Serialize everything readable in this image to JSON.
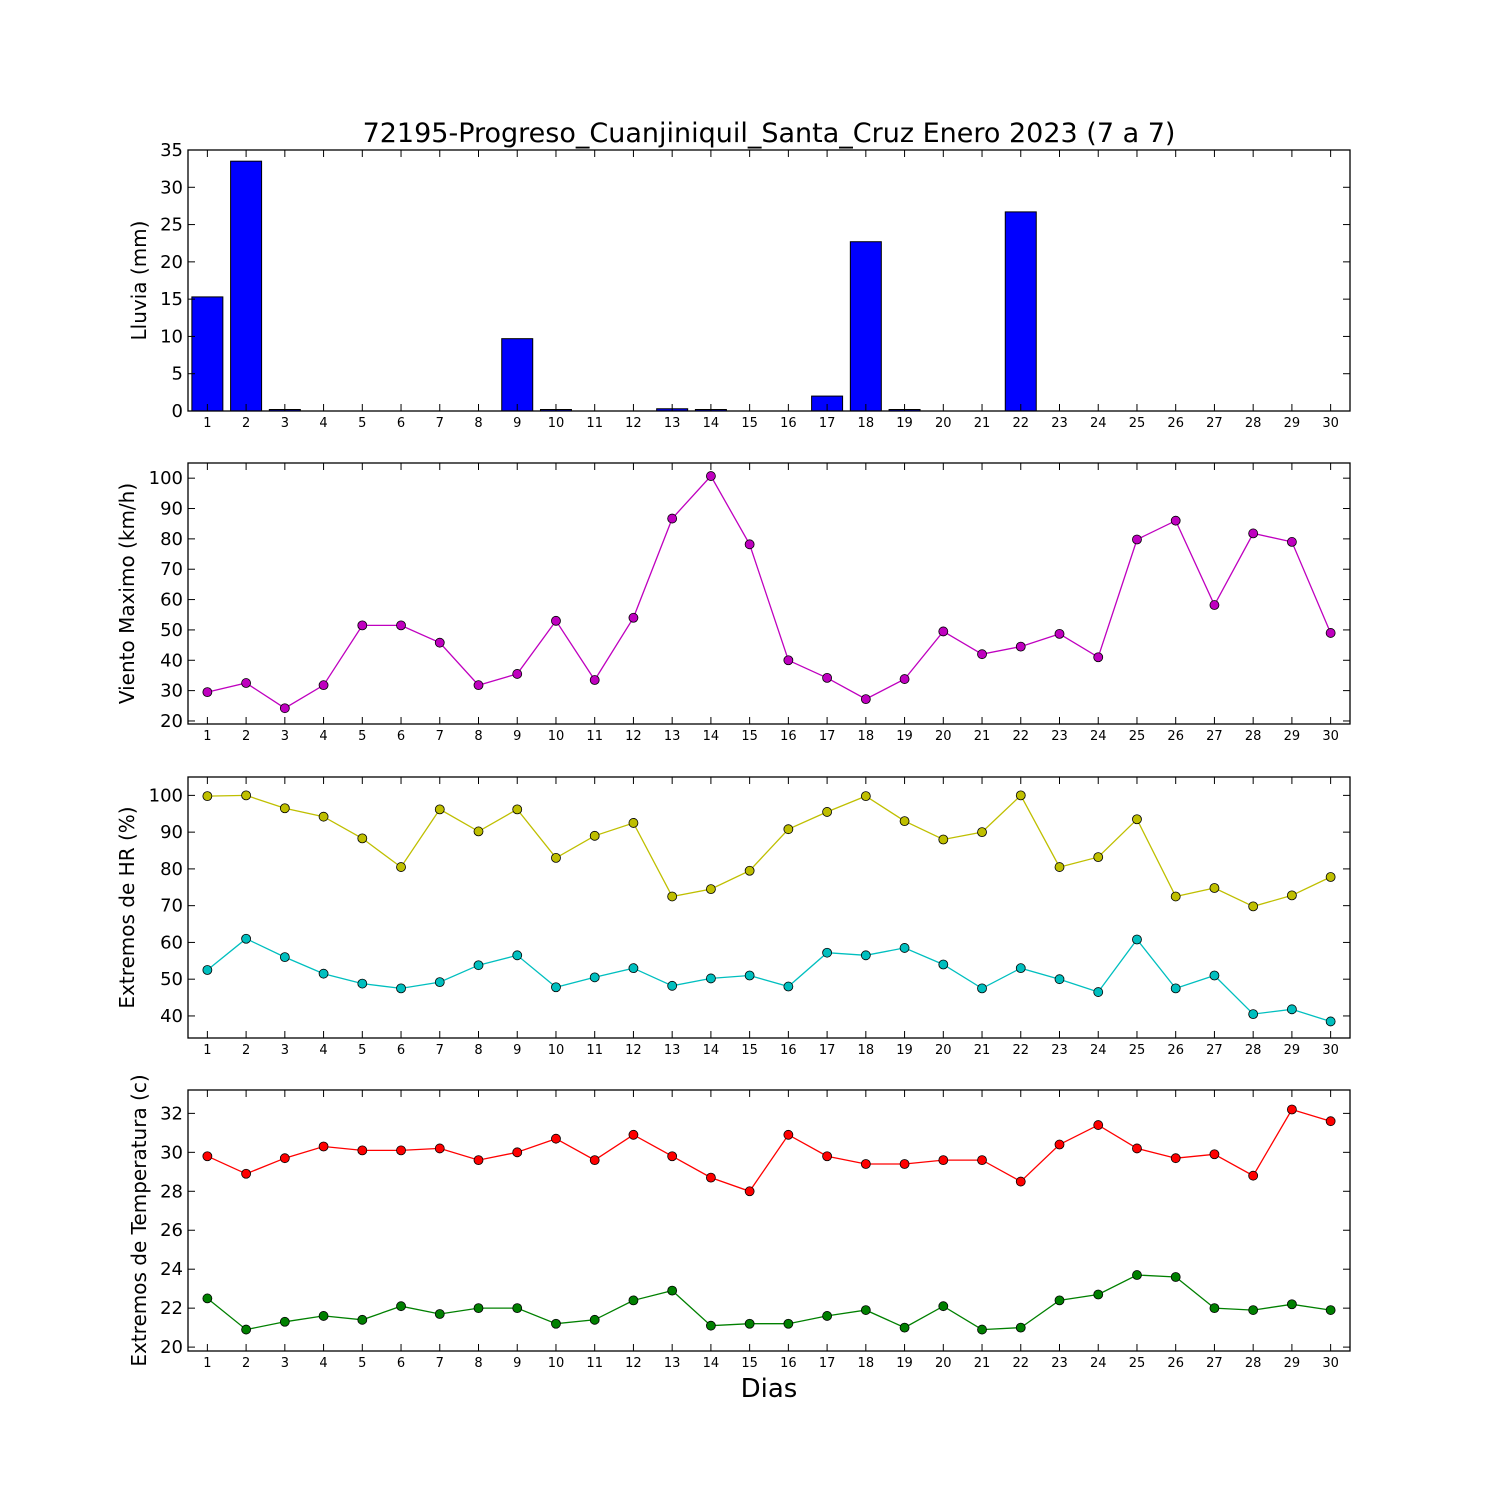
{
  "chart_data": [
    {
      "type": "bar",
      "title": "72195-Progreso_Cuanjiniquil_Santa_Cruz Enero 2023  (7 a 7)",
      "ylabel": "Lluvia (mm)",
      "xlabel": "",
      "x": [
        1,
        2,
        3,
        4,
        5,
        6,
        7,
        8,
        9,
        10,
        11,
        12,
        13,
        14,
        15,
        16,
        17,
        18,
        19,
        20,
        21,
        22,
        23,
        24,
        25,
        26,
        27,
        28,
        29,
        30
      ],
      "xlim": [
        0.5,
        30.5
      ],
      "ylim": [
        0,
        35
      ],
      "yticks": [
        0,
        5,
        10,
        15,
        20,
        25,
        30,
        35
      ],
      "series": [
        {
          "color": "#0000ff",
          "values": [
            15.3,
            33.5,
            0.2,
            0,
            0,
            0,
            0,
            0,
            9.7,
            0.2,
            0,
            0,
            0.3,
            0.2,
            0,
            0,
            2.0,
            22.7,
            0.2,
            0,
            0,
            26.7,
            0,
            0,
            0,
            0,
            0,
            0,
            0,
            0
          ]
        }
      ],
      "grid": false
    },
    {
      "type": "line",
      "ylabel": "Viento Maximo (km/h)",
      "x": [
        1,
        2,
        3,
        4,
        5,
        6,
        7,
        8,
        9,
        10,
        11,
        12,
        13,
        14,
        15,
        16,
        17,
        18,
        19,
        20,
        21,
        22,
        23,
        24,
        25,
        26,
        27,
        28,
        29,
        30
      ],
      "xlim": [
        0.5,
        30.5
      ],
      "ylim": [
        19,
        105
      ],
      "yticks": [
        20,
        30,
        40,
        50,
        60,
        70,
        80,
        90,
        100
      ],
      "series": [
        {
          "color": "#bf00bf",
          "values": [
            29.5,
            32.5,
            24.2,
            31.8,
            51.5,
            51.5,
            45.8,
            31.8,
            35.5,
            53.0,
            33.5,
            54.0,
            86.7,
            100.7,
            78.2,
            40.0,
            34.2,
            27.2,
            33.8,
            49.5,
            42.0,
            44.5,
            48.7,
            41.0,
            79.8,
            86.0,
            58.2,
            81.8,
            79.0,
            49.0
          ]
        }
      ],
      "grid": false
    },
    {
      "type": "line",
      "ylabel": "Extremos de HR (%)",
      "x": [
        1,
        2,
        3,
        4,
        5,
        6,
        7,
        8,
        9,
        10,
        11,
        12,
        13,
        14,
        15,
        16,
        17,
        18,
        19,
        20,
        21,
        22,
        23,
        24,
        25,
        26,
        27,
        28,
        29,
        30
      ],
      "xlim": [
        0.5,
        30.5
      ],
      "ylim": [
        34,
        105
      ],
      "yticks": [
        40,
        50,
        60,
        70,
        80,
        90,
        100
      ],
      "series": [
        {
          "color": "#bfbf00",
          "values": [
            99.8,
            100,
            96.5,
            94.2,
            88.3,
            80.5,
            96.2,
            90.2,
            96.2,
            83.0,
            89.0,
            92.5,
            72.5,
            74.5,
            79.5,
            90.8,
            95.5,
            99.8,
            93.0,
            88.0,
            90.0,
            100,
            80.5,
            83.2,
            93.5,
            72.5,
            74.8,
            69.8,
            72.8,
            77.8
          ]
        },
        {
          "color": "#00bfbf",
          "values": [
            52.5,
            61.0,
            56.0,
            51.5,
            48.8,
            47.5,
            49.2,
            53.8,
            56.5,
            47.8,
            50.5,
            53.0,
            48.2,
            50.2,
            51.0,
            48.0,
            57.2,
            56.5,
            58.5,
            54.0,
            47.5,
            53.0,
            50.0,
            46.5,
            60.8,
            47.5,
            51.0,
            40.5,
            41.8,
            38.5
          ]
        }
      ],
      "grid": false
    },
    {
      "type": "line",
      "ylabel": "Extremos de Temperatura (c)",
      "xlabel": "Dias",
      "x": [
        1,
        2,
        3,
        4,
        5,
        6,
        7,
        8,
        9,
        10,
        11,
        12,
        13,
        14,
        15,
        16,
        17,
        18,
        19,
        20,
        21,
        22,
        23,
        24,
        25,
        26,
        27,
        28,
        29,
        30
      ],
      "xlim": [
        0.5,
        30.5
      ],
      "ylim": [
        19.8,
        33.2
      ],
      "yticks": [
        20,
        22,
        24,
        26,
        28,
        30,
        32
      ],
      "series": [
        {
          "color": "#ff0000",
          "values": [
            29.8,
            28.9,
            29.7,
            30.3,
            30.1,
            30.1,
            30.2,
            29.6,
            30.0,
            30.7,
            29.6,
            30.9,
            29.8,
            28.7,
            28.0,
            30.9,
            29.8,
            29.4,
            29.4,
            29.6,
            29.6,
            28.5,
            30.4,
            31.4,
            30.2,
            29.7,
            29.9,
            28.8,
            32.2,
            31.6
          ]
        },
        {
          "color": "#008000",
          "values": [
            22.5,
            20.9,
            21.3,
            21.6,
            21.4,
            22.1,
            21.7,
            22.0,
            22.0,
            21.2,
            21.4,
            22.4,
            22.9,
            21.1,
            21.2,
            21.2,
            21.6,
            21.9,
            21.0,
            22.1,
            20.9,
            21.0,
            22.4,
            22.7,
            23.7,
            23.6,
            22.0,
            21.9,
            22.2,
            21.9
          ]
        }
      ],
      "grid": false
    }
  ]
}
